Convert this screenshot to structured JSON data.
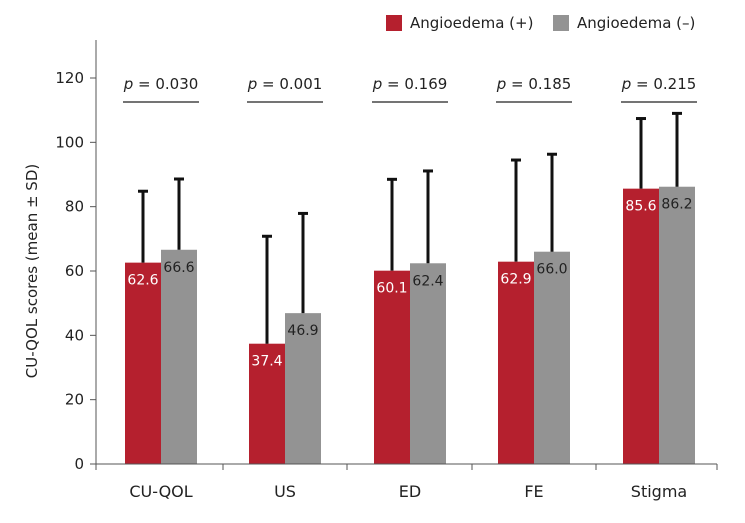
{
  "chart_data": {
    "type": "bar",
    "categories": [
      "CU-QOL",
      "US",
      "ED",
      "FE",
      "Stigma"
    ],
    "ylabel": "CU-QOL scores (mean ± SD)",
    "ylim": [
      0,
      120
    ],
    "yticks": [
      0,
      20,
      40,
      60,
      80,
      100,
      120
    ],
    "grid": false,
    "legend_position": "top-right",
    "series": [
      {
        "name": "Angioedema (+)",
        "color": "#b5202e",
        "values": [
          62.6,
          37.4,
          60.1,
          62.9,
          85.6
        ],
        "labels": [
          "62.6",
          "37.4",
          "60.1",
          "62.9",
          "85.6"
        ],
        "error_upper": [
          84.8,
          70.8,
          88.5,
          94.5,
          107.4
        ]
      },
      {
        "name": "Angioedema (–)",
        "color": "#939393",
        "values": [
          66.6,
          46.9,
          62.4,
          66.0,
          86.2
        ],
        "labels": [
          "66.6",
          "46.9",
          "62.4",
          "66.0",
          "86.2"
        ],
        "error_upper": [
          88.6,
          77.9,
          91.1,
          96.3,
          109.0
        ]
      }
    ],
    "annotations": [
      "p = 0.030",
      "p = 0.001",
      "p = 0.169",
      "p = 0.185",
      "p = 0.215"
    ]
  }
}
